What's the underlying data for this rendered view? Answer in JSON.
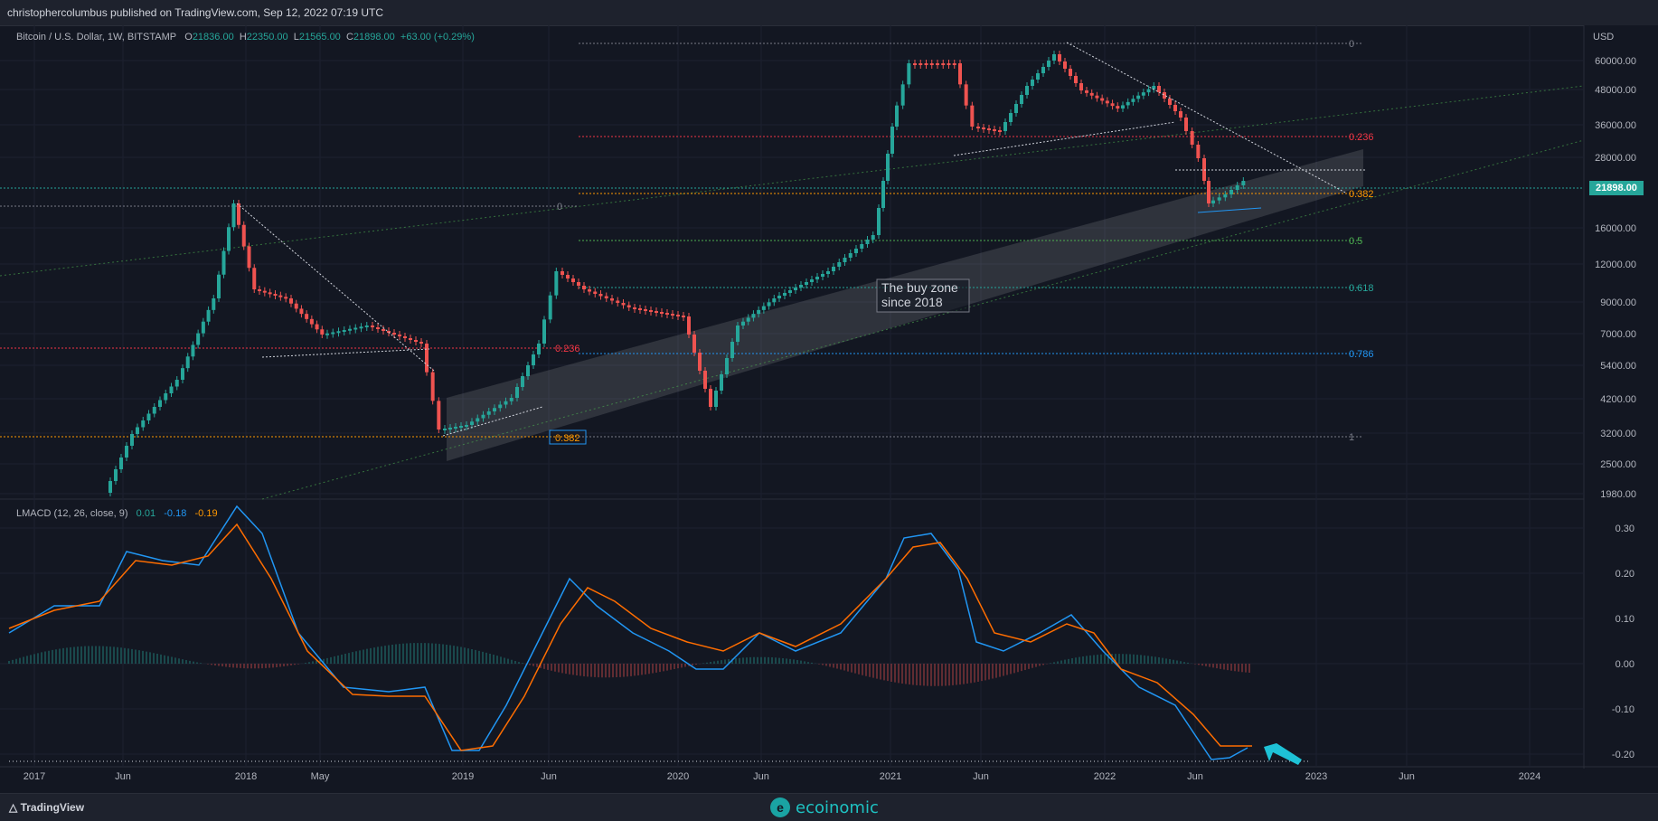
{
  "header": {
    "publisher_line": "christophercolumbus published on TradingView.com, Sep 12, 2022 07:19 UTC"
  },
  "legend": {
    "symbol": "Bitcoin / U.S. Dollar, 1W, BITSTAMP",
    "open_label": "O",
    "open": "21836.00",
    "high_label": "H",
    "high": "22350.00",
    "low_label": "L",
    "low": "21565.00",
    "close_label": "C",
    "close": "21898.00",
    "change": "+63.00 (+0.29%)"
  },
  "macd_legend": {
    "name": "LMACD (12, 26, close, 9)",
    "hist": "0.01",
    "macd": "-0.18",
    "signal": "-0.19"
  },
  "price_axis": {
    "currency": "USD",
    "ticks": [
      "60000.00",
      "48000.00",
      "36000.00",
      "28000.00",
      "21898.00",
      "16000.00",
      "12000.00",
      "9000.00",
      "7000.00",
      "5400.00",
      "4200.00",
      "3200.00",
      "2500.00",
      "1980.00"
    ],
    "last_price": "21898.00"
  },
  "macd_axis": {
    "ticks": [
      "0.30",
      "0.20",
      "0.10",
      "0.00",
      "-0.10",
      "-0.20"
    ]
  },
  "time_axis": {
    "ticks": [
      "2017",
      "Jun",
      "2018",
      "May",
      "2019",
      "Jun",
      "2020",
      "Jun",
      "2021",
      "Jun",
      "2022",
      "Jun",
      "2023",
      "Jun",
      "2024"
    ]
  },
  "fib_2018": {
    "levels": [
      {
        "label": "0",
        "color": "#787b86"
      },
      {
        "label": "0.236",
        "color": "#f23645"
      },
      {
        "label": "0.382",
        "color": "#ff9800"
      }
    ]
  },
  "fib_2021": {
    "levels": [
      {
        "label": "0",
        "color": "#787b86"
      },
      {
        "label": "0.236",
        "color": "#f23645"
      },
      {
        "label": "0.382",
        "color": "#ff9800"
      },
      {
        "label": "0.5",
        "color": "#4caf50"
      },
      {
        "label": "0.618",
        "color": "#26a69a"
      },
      {
        "label": "0.786",
        "color": "#2196f3"
      },
      {
        "label": "1",
        "color": "#787b86"
      }
    ]
  },
  "annotation": {
    "line1": "The buy zone",
    "line2": "since 2018"
  },
  "footer": {
    "tv_brand": "TradingView",
    "watermark": "ecoinomic"
  },
  "colors": {
    "bg": "#131722",
    "up": "#26a69a",
    "down": "#ef5350",
    "macd": "#2196f3",
    "signal": "#ff6d00",
    "arrow": "#1ec2d6"
  }
}
